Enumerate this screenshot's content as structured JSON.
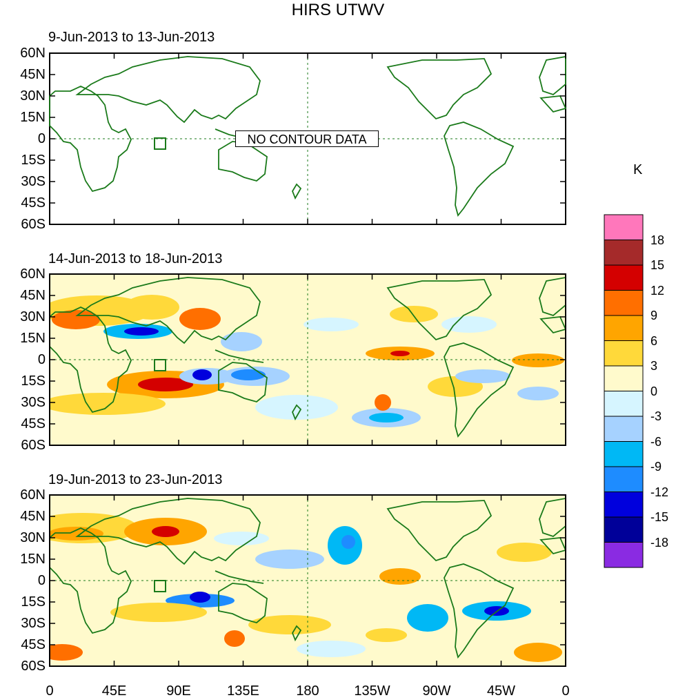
{
  "title": "HIRS UTWV",
  "panels": [
    {
      "subtitle": "9-Jun-2013 to 13-Jun-2013",
      "message": "NO CONTOUR DATA"
    },
    {
      "subtitle": "14-Jun-2013 to 18-Jun-2013"
    },
    {
      "subtitle": "19-Jun-2013 to 23-Jun-2013"
    }
  ],
  "lat_labels": [
    "60N",
    "45N",
    "30N",
    "15N",
    "0",
    "15S",
    "30S",
    "45S",
    "60S"
  ],
  "lon_labels": [
    "0",
    "45E",
    "90E",
    "135E",
    "180",
    "135W",
    "90W",
    "45W",
    "0"
  ],
  "colorbar": {
    "unit": "K",
    "labels": [
      "18",
      "15",
      "12",
      "9",
      "6",
      "3",
      "0",
      "-3",
      "-6",
      "-9",
      "-12",
      "-15",
      "-18"
    ],
    "colors": [
      "#ff77bb",
      "#a52a2a",
      "#d40000",
      "#ff6f00",
      "#ffa500",
      "#ffd93a",
      "#fffacc",
      "#d6f5ff",
      "#a6d2ff",
      "#00b8f5",
      "#1e8cff",
      "#0000dd",
      "#000099",
      "#8a2be2"
    ]
  },
  "colors": {
    "coast": "#1a7a1a",
    "fill_bg": "#fffacc"
  }
}
